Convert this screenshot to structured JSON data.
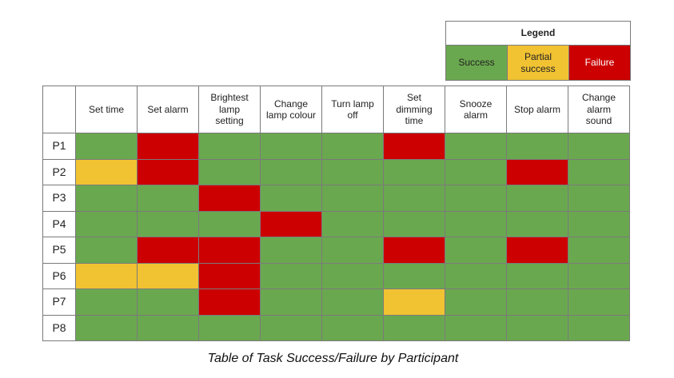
{
  "legend": {
    "title": "Legend",
    "items": [
      {
        "label": "Success",
        "color": "#6aa84f"
      },
      {
        "label": "Partial success",
        "color": "#f1c232"
      },
      {
        "label": "Failure",
        "color": "#cc0000"
      }
    ]
  },
  "table": {
    "columns": [
      "Set time",
      "Set alarm",
      "Brightest lamp setting",
      "Change lamp colour",
      "Turn lamp off",
      "Set dimming time",
      "Snooze alarm",
      "Stop alarm",
      "Change alarm sound"
    ],
    "rows": [
      {
        "label": "P1",
        "cells": [
          0,
          2,
          0,
          0,
          0,
          2,
          0,
          0,
          0
        ]
      },
      {
        "label": "P2",
        "cells": [
          1,
          2,
          0,
          0,
          0,
          0,
          0,
          2,
          0
        ]
      },
      {
        "label": "P3",
        "cells": [
          0,
          0,
          2,
          0,
          0,
          0,
          0,
          0,
          0
        ]
      },
      {
        "label": "P4",
        "cells": [
          0,
          0,
          0,
          2,
          0,
          0,
          0,
          0,
          0
        ]
      },
      {
        "label": "P5",
        "cells": [
          0,
          2,
          2,
          0,
          0,
          2,
          0,
          2,
          0
        ]
      },
      {
        "label": "P6",
        "cells": [
          1,
          1,
          2,
          0,
          0,
          0,
          0,
          0,
          0
        ]
      },
      {
        "label": "P7",
        "cells": [
          0,
          0,
          2,
          0,
          0,
          1,
          0,
          0,
          0
        ]
      },
      {
        "label": "P8",
        "cells": [
          0,
          0,
          0,
          0,
          0,
          0,
          0,
          0,
          0
        ]
      }
    ]
  },
  "caption": "Table of Task Success/Failure by Participant"
}
